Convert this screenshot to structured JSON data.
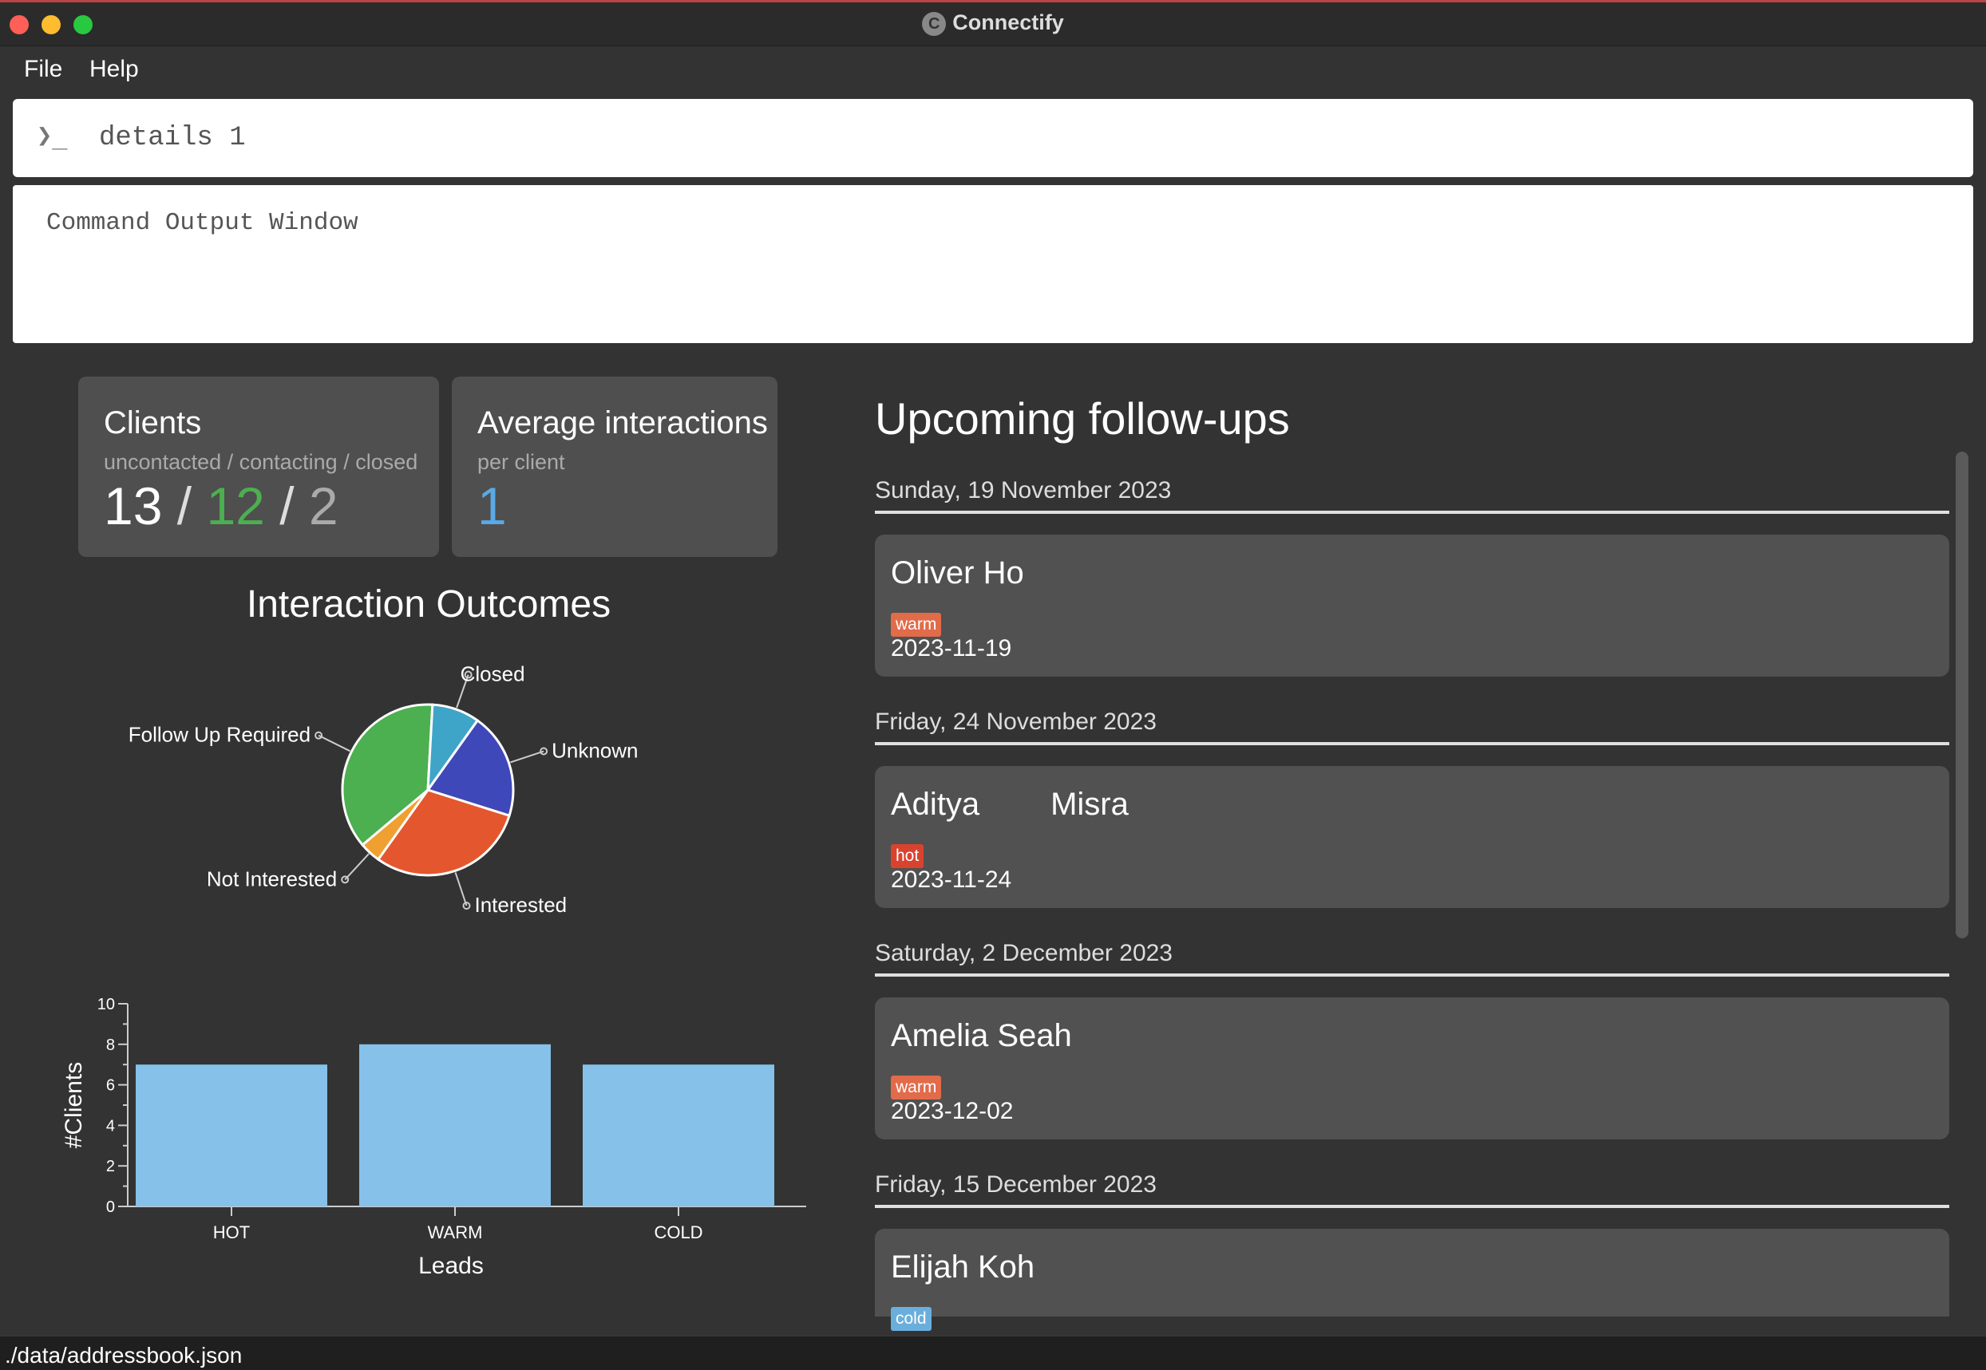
{
  "window": {
    "title": "Connectify",
    "icon": "connectify-logo-icon"
  },
  "menu": {
    "file": "File",
    "help": "Help"
  },
  "command": {
    "prompt": "❯_",
    "value": "details 1"
  },
  "output": {
    "text": "Command Output Window"
  },
  "stats": {
    "clients": {
      "title": "Clients",
      "subtitle": "uncontacted / contacting / closed",
      "uncontacted": "13",
      "contacting": "12",
      "closed": "2",
      "sep": " / "
    },
    "avg": {
      "title": "Average interactions",
      "subtitle": "per client",
      "value": "1"
    }
  },
  "pie": {
    "title": "Interaction Outcomes",
    "slices": [
      {
        "label": "Unknown",
        "value": 20,
        "color": "#3f48b8"
      },
      {
        "label": "Interested",
        "value": 30,
        "color": "#e4572e"
      },
      {
        "label": "Not Interested",
        "value": 4,
        "color": "#f0a030"
      },
      {
        "label": "Follow Up Required",
        "value": 37,
        "color": "#4caf50"
      },
      {
        "label": "Closed",
        "value": 9,
        "color": "#3fa5c8"
      }
    ]
  },
  "chart_data": {
    "type": "bar",
    "categories": [
      "HOT",
      "WARM",
      "COLD"
    ],
    "values": [
      7,
      8,
      7
    ],
    "xlabel": "Leads",
    "ylabel": "#Clients",
    "ylim": [
      0,
      10
    ],
    "yticks": [
      0,
      2,
      4,
      6,
      8,
      10
    ],
    "color": "#85c1e9"
  },
  "followups": {
    "title": "Upcoming follow-ups",
    "groups": [
      {
        "date": "Sunday, 19 November 2023",
        "name": "Oliver Ho",
        "tag": "warm",
        "tag_color": "#e26b4a",
        "when": "2023-11-19"
      },
      {
        "date": "Friday, 24 November 2023",
        "name": "Aditya        Misra",
        "tag": "hot",
        "tag_color": "#d9432e",
        "when": "2023-11-24"
      },
      {
        "date": "Saturday, 2 December 2023",
        "name": "Amelia Seah",
        "tag": "warm",
        "tag_color": "#e26b4a",
        "when": "2023-12-02"
      },
      {
        "date": "Friday, 15 December 2023",
        "name": "Elijah Koh",
        "tag": "cold",
        "tag_color": "#6aaedc",
        "when": ""
      }
    ]
  },
  "status": {
    "path": "./data/addressbook.json"
  }
}
